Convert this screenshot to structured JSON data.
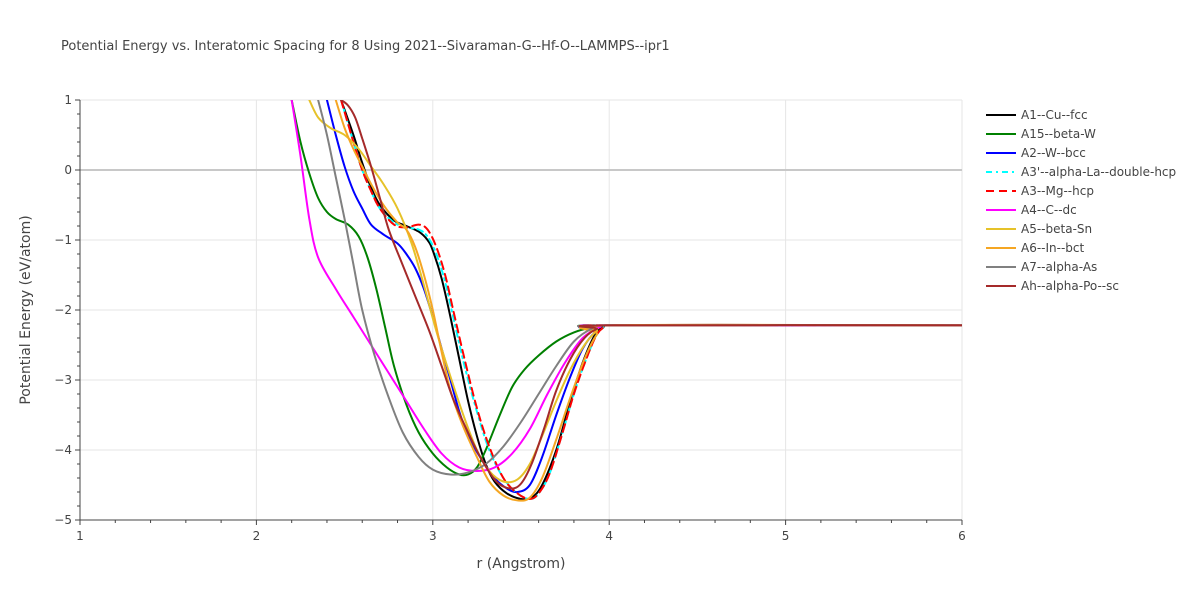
{
  "chart_data": {
    "type": "line",
    "title": "Potential Energy vs. Interatomic Spacing for 8 Using 2021--Sivaraman-G--Hf-O--LAMMPS--ipr1",
    "xlabel": "r (Angstrom)",
    "ylabel": "Potential Energy (eV/atom)",
    "xlim": [
      1,
      6
    ],
    "ylim": [
      -5,
      1
    ],
    "x_ticks": [
      1,
      2,
      3,
      4,
      5,
      6
    ],
    "y_ticks": [
      1,
      0,
      -1,
      -2,
      -3,
      -4,
      -5
    ],
    "y_tick_labels": [
      "1",
      "0",
      "−1",
      "−2",
      "−3",
      "−4",
      "−5"
    ],
    "grid": true,
    "legend_position": "right",
    "series": [
      {
        "name": "A1--Cu--fcc",
        "color": "#000000",
        "dash": "solid",
        "points": [
          [
            2.48,
            1.0
          ],
          [
            2.55,
            0.5
          ],
          [
            2.6,
            0.1
          ],
          [
            2.65,
            -0.25
          ],
          [
            2.7,
            -0.5
          ],
          [
            2.78,
            -0.72
          ],
          [
            2.85,
            -0.8
          ],
          [
            2.92,
            -0.88
          ],
          [
            2.97,
            -1.0
          ],
          [
            3.0,
            -1.15
          ],
          [
            3.05,
            -1.55
          ],
          [
            3.1,
            -2.1
          ],
          [
            3.15,
            -2.7
          ],
          [
            3.2,
            -3.3
          ],
          [
            3.25,
            -3.8
          ],
          [
            3.3,
            -4.2
          ],
          [
            3.35,
            -4.45
          ],
          [
            3.42,
            -4.62
          ],
          [
            3.5,
            -4.7
          ],
          [
            3.56,
            -4.68
          ],
          [
            3.62,
            -4.5
          ],
          [
            3.7,
            -4.0
          ],
          [
            3.78,
            -3.3
          ],
          [
            3.85,
            -2.75
          ],
          [
            3.92,
            -2.35
          ],
          [
            3.97,
            -2.24
          ],
          [
            4.0,
            -2.22
          ],
          [
            6.0,
            -2.22
          ]
        ]
      },
      {
        "name": "A15--beta-W",
        "color": "#008000",
        "dash": "solid",
        "points": [
          [
            2.2,
            1.0
          ],
          [
            2.25,
            0.4
          ],
          [
            2.3,
            -0.05
          ],
          [
            2.35,
            -0.4
          ],
          [
            2.4,
            -0.6
          ],
          [
            2.45,
            -0.7
          ],
          [
            2.52,
            -0.78
          ],
          [
            2.58,
            -0.95
          ],
          [
            2.63,
            -1.25
          ],
          [
            2.68,
            -1.7
          ],
          [
            2.73,
            -2.25
          ],
          [
            2.78,
            -2.8
          ],
          [
            2.85,
            -3.35
          ],
          [
            2.92,
            -3.75
          ],
          [
            3.0,
            -4.05
          ],
          [
            3.08,
            -4.25
          ],
          [
            3.15,
            -4.35
          ],
          [
            3.2,
            -4.35
          ],
          [
            3.25,
            -4.25
          ],
          [
            3.3,
            -4.0
          ],
          [
            3.38,
            -3.5
          ],
          [
            3.45,
            -3.1
          ],
          [
            3.52,
            -2.85
          ],
          [
            3.6,
            -2.65
          ],
          [
            3.7,
            -2.45
          ],
          [
            3.8,
            -2.32
          ],
          [
            3.9,
            -2.25
          ],
          [
            4.0,
            -2.22
          ],
          [
            6.0,
            -2.22
          ]
        ]
      },
      {
        "name": "A2--W--bcc",
        "color": "#0000ff",
        "dash": "solid",
        "points": [
          [
            2.4,
            1.0
          ],
          [
            2.45,
            0.5
          ],
          [
            2.5,
            0.05
          ],
          [
            2.55,
            -0.3
          ],
          [
            2.6,
            -0.55
          ],
          [
            2.65,
            -0.78
          ],
          [
            2.72,
            -0.92
          ],
          [
            2.8,
            -1.05
          ],
          [
            2.85,
            -1.2
          ],
          [
            2.9,
            -1.4
          ],
          [
            2.95,
            -1.7
          ],
          [
            3.0,
            -2.1
          ],
          [
            3.05,
            -2.55
          ],
          [
            3.1,
            -3.0
          ],
          [
            3.15,
            -3.45
          ],
          [
            3.2,
            -3.8
          ],
          [
            3.28,
            -4.15
          ],
          [
            3.35,
            -4.4
          ],
          [
            3.42,
            -4.55
          ],
          [
            3.48,
            -4.6
          ],
          [
            3.55,
            -4.5
          ],
          [
            3.62,
            -4.1
          ],
          [
            3.7,
            -3.5
          ],
          [
            3.78,
            -2.95
          ],
          [
            3.85,
            -2.55
          ],
          [
            3.92,
            -2.32
          ],
          [
            4.0,
            -2.22
          ],
          [
            6.0,
            -2.22
          ]
        ]
      },
      {
        "name": "A3'--alpha-La--double-hcp",
        "color": "#00ffff",
        "dash": "6,4,2,4",
        "points": [
          [
            2.48,
            1.0
          ],
          [
            2.55,
            0.4
          ],
          [
            2.6,
            0.0
          ],
          [
            2.65,
            -0.3
          ],
          [
            2.7,
            -0.55
          ],
          [
            2.78,
            -0.75
          ],
          [
            2.85,
            -0.82
          ],
          [
            2.92,
            -0.85
          ],
          [
            2.97,
            -0.95
          ],
          [
            3.02,
            -1.2
          ],
          [
            3.07,
            -1.6
          ],
          [
            3.12,
            -2.15
          ],
          [
            3.18,
            -2.8
          ],
          [
            3.25,
            -3.45
          ],
          [
            3.32,
            -4.0
          ],
          [
            3.4,
            -4.4
          ],
          [
            3.48,
            -4.62
          ],
          [
            3.55,
            -4.7
          ],
          [
            3.6,
            -4.62
          ],
          [
            3.66,
            -4.35
          ],
          [
            3.73,
            -3.8
          ],
          [
            3.8,
            -3.2
          ],
          [
            3.87,
            -2.7
          ],
          [
            3.93,
            -2.35
          ],
          [
            3.98,
            -2.23
          ],
          [
            4.0,
            -2.22
          ],
          [
            6.0,
            -2.22
          ]
        ]
      },
      {
        "name": "A3--Mg--hcp",
        "color": "#ff0000",
        "dash": "8,5",
        "points": [
          [
            2.48,
            1.0
          ],
          [
            2.55,
            0.4
          ],
          [
            2.6,
            0.0
          ],
          [
            2.65,
            -0.3
          ],
          [
            2.7,
            -0.55
          ],
          [
            2.78,
            -0.78
          ],
          [
            2.85,
            -0.82
          ],
          [
            2.92,
            -0.78
          ],
          [
            2.97,
            -0.85
          ],
          [
            3.02,
            -1.1
          ],
          [
            3.07,
            -1.5
          ],
          [
            3.12,
            -2.05
          ],
          [
            3.18,
            -2.7
          ],
          [
            3.25,
            -3.4
          ],
          [
            3.32,
            -3.95
          ],
          [
            3.4,
            -4.4
          ],
          [
            3.48,
            -4.62
          ],
          [
            3.55,
            -4.7
          ],
          [
            3.6,
            -4.62
          ],
          [
            3.66,
            -4.35
          ],
          [
            3.73,
            -3.8
          ],
          [
            3.8,
            -3.2
          ],
          [
            3.87,
            -2.7
          ],
          [
            3.93,
            -2.35
          ],
          [
            3.98,
            -2.23
          ],
          [
            4.0,
            -2.22
          ],
          [
            6.0,
            -2.22
          ]
        ]
      },
      {
        "name": "A4--C--dc",
        "color": "#ff00ff",
        "dash": "solid",
        "points": [
          [
            2.2,
            1.0
          ],
          [
            2.25,
            0.2
          ],
          [
            2.3,
            -0.7
          ],
          [
            2.35,
            -1.25
          ],
          [
            2.45,
            -1.7
          ],
          [
            2.55,
            -2.1
          ],
          [
            2.65,
            -2.5
          ],
          [
            2.75,
            -2.9
          ],
          [
            2.85,
            -3.3
          ],
          [
            2.95,
            -3.7
          ],
          [
            3.05,
            -4.05
          ],
          [
            3.15,
            -4.25
          ],
          [
            3.25,
            -4.3
          ],
          [
            3.35,
            -4.25
          ],
          [
            3.45,
            -4.05
          ],
          [
            3.55,
            -3.7
          ],
          [
            3.65,
            -3.2
          ],
          [
            3.75,
            -2.75
          ],
          [
            3.85,
            -2.4
          ],
          [
            3.95,
            -2.24
          ],
          [
            4.0,
            -2.22
          ],
          [
            6.0,
            -2.22
          ]
        ]
      },
      {
        "name": "A5--beta-Sn",
        "color": "#e6c229",
        "dash": "solid",
        "points": [
          [
            2.3,
            1.0
          ],
          [
            2.35,
            0.75
          ],
          [
            2.42,
            0.6
          ],
          [
            2.5,
            0.5
          ],
          [
            2.58,
            0.3
          ],
          [
            2.65,
            0.05
          ],
          [
            2.72,
            -0.2
          ],
          [
            2.8,
            -0.55
          ],
          [
            2.88,
            -1.05
          ],
          [
            2.95,
            -1.65
          ],
          [
            3.02,
            -2.3
          ],
          [
            3.1,
            -2.95
          ],
          [
            3.18,
            -3.55
          ],
          [
            3.25,
            -4.0
          ],
          [
            3.32,
            -4.3
          ],
          [
            3.4,
            -4.45
          ],
          [
            3.48,
            -4.42
          ],
          [
            3.55,
            -4.2
          ],
          [
            3.62,
            -3.8
          ],
          [
            3.7,
            -3.3
          ],
          [
            3.78,
            -2.85
          ],
          [
            3.86,
            -2.5
          ],
          [
            3.93,
            -2.3
          ],
          [
            4.0,
            -2.22
          ],
          [
            6.0,
            -2.22
          ]
        ]
      },
      {
        "name": "A6--In--bct",
        "color": "#f5a623",
        "dash": "solid",
        "points": [
          [
            2.45,
            1.0
          ],
          [
            2.5,
            0.6
          ],
          [
            2.55,
            0.3
          ],
          [
            2.6,
            0.05
          ],
          [
            2.65,
            -0.2
          ],
          [
            2.72,
            -0.5
          ],
          [
            2.8,
            -0.75
          ],
          [
            2.85,
            -0.85
          ],
          [
            2.9,
            -1.1
          ],
          [
            2.95,
            -1.5
          ],
          [
            3.0,
            -2.0
          ],
          [
            3.05,
            -2.6
          ],
          [
            3.1,
            -3.15
          ],
          [
            3.17,
            -3.65
          ],
          [
            3.25,
            -4.1
          ],
          [
            3.32,
            -4.45
          ],
          [
            3.4,
            -4.65
          ],
          [
            3.48,
            -4.72
          ],
          [
            3.55,
            -4.68
          ],
          [
            3.62,
            -4.4
          ],
          [
            3.7,
            -3.85
          ],
          [
            3.78,
            -3.25
          ],
          [
            3.86,
            -2.7
          ],
          [
            3.93,
            -2.35
          ],
          [
            4.0,
            -2.22
          ],
          [
            6.0,
            -2.22
          ]
        ]
      },
      {
        "name": "A7--alpha-As",
        "color": "#808080",
        "dash": "solid",
        "points": [
          [
            2.35,
            1.0
          ],
          [
            2.4,
            0.5
          ],
          [
            2.45,
            -0.1
          ],
          [
            2.5,
            -0.7
          ],
          [
            2.55,
            -1.35
          ],
          [
            2.6,
            -2.0
          ],
          [
            2.67,
            -2.65
          ],
          [
            2.75,
            -3.25
          ],
          [
            2.83,
            -3.75
          ],
          [
            2.92,
            -4.1
          ],
          [
            3.0,
            -4.28
          ],
          [
            3.1,
            -4.35
          ],
          [
            3.2,
            -4.32
          ],
          [
            3.3,
            -4.2
          ],
          [
            3.4,
            -3.95
          ],
          [
            3.5,
            -3.6
          ],
          [
            3.6,
            -3.2
          ],
          [
            3.7,
            -2.8
          ],
          [
            3.8,
            -2.45
          ],
          [
            3.9,
            -2.27
          ],
          [
            4.0,
            -2.22
          ],
          [
            6.0,
            -2.22
          ]
        ]
      },
      {
        "name": "Ah--alpha-Po--sc",
        "color": "#a52a2a",
        "dash": "solid",
        "points": [
          [
            2.48,
            1.0
          ],
          [
            2.52,
            0.92
          ],
          [
            2.56,
            0.75
          ],
          [
            2.6,
            0.45
          ],
          [
            2.65,
            0.05
          ],
          [
            2.7,
            -0.4
          ],
          [
            2.75,
            -0.85
          ],
          [
            2.82,
            -1.3
          ],
          [
            2.9,
            -1.8
          ],
          [
            2.98,
            -2.3
          ],
          [
            3.05,
            -2.8
          ],
          [
            3.12,
            -3.3
          ],
          [
            3.2,
            -3.75
          ],
          [
            3.28,
            -4.15
          ],
          [
            3.36,
            -4.45
          ],
          [
            3.44,
            -4.55
          ],
          [
            3.5,
            -4.48
          ],
          [
            3.56,
            -4.2
          ],
          [
            3.63,
            -3.7
          ],
          [
            3.7,
            -3.15
          ],
          [
            3.78,
            -2.7
          ],
          [
            3.86,
            -2.4
          ],
          [
            3.93,
            -2.27
          ],
          [
            4.0,
            -2.22
          ],
          [
            6.0,
            -2.22
          ]
        ]
      }
    ]
  }
}
